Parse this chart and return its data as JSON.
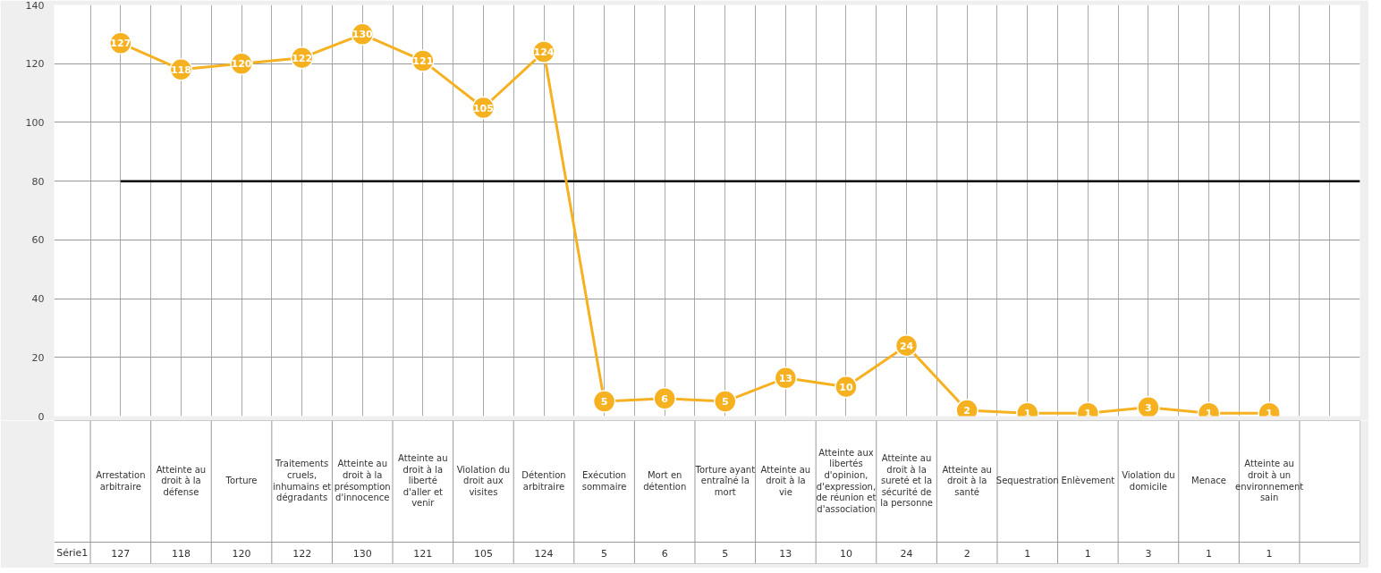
{
  "chart_data": {
    "type": "line",
    "categories": [
      "Arrestation arbitraire",
      "Atteinte au droit à la défense",
      "Torture",
      "Traitements cruels, inhumains et dégradants",
      "Atteinte au droit à la présomption d'innocence",
      "Atteinte au droit à la liberté d'aller et venir",
      "Violation du droit aux visites",
      "Détention arbitraire",
      "Exécution sommaire",
      "Mort en détention",
      "Torture ayant entraîné la mort",
      "Atteinte au droit à la vie",
      "Atteinte aux libertés d'opinion, d'expression, de réunion et d'association",
      "Atteinte au droit à la sureté et la sécurité de la personne",
      "Atteinte au droit à la santé",
      "Sequestration",
      "Enlèvement",
      "Violation du domicile",
      "Menace",
      "Atteinte au droit à un environnement sain",
      null
    ],
    "series": [
      {
        "name": "Série1",
        "color": "#f5b120",
        "values": [
          127,
          118,
          120,
          122,
          130,
          121,
          105,
          124,
          5,
          6,
          5,
          13,
          10,
          24,
          2,
          1,
          1,
          3,
          1,
          1,
          null
        ],
        "value_labels": [
          "127",
          "118",
          "120",
          "122",
          "130",
          "121",
          "105",
          "124",
          "5",
          "6",
          "5",
          "13",
          "10",
          "24",
          "2",
          "1",
          "1",
          "3",
          "1",
          "1",
          null
        ]
      }
    ],
    "ylim": [
      0,
      140
    ],
    "yticks": [
      0,
      20,
      40,
      60,
      80,
      100,
      120,
      140
    ],
    "ref_lines": [
      {
        "axis": "y",
        "value": 80,
        "color": "#000000"
      }
    ],
    "data_labels": true,
    "marker": "circle",
    "line_style": "solid",
    "grid": true
  }
}
